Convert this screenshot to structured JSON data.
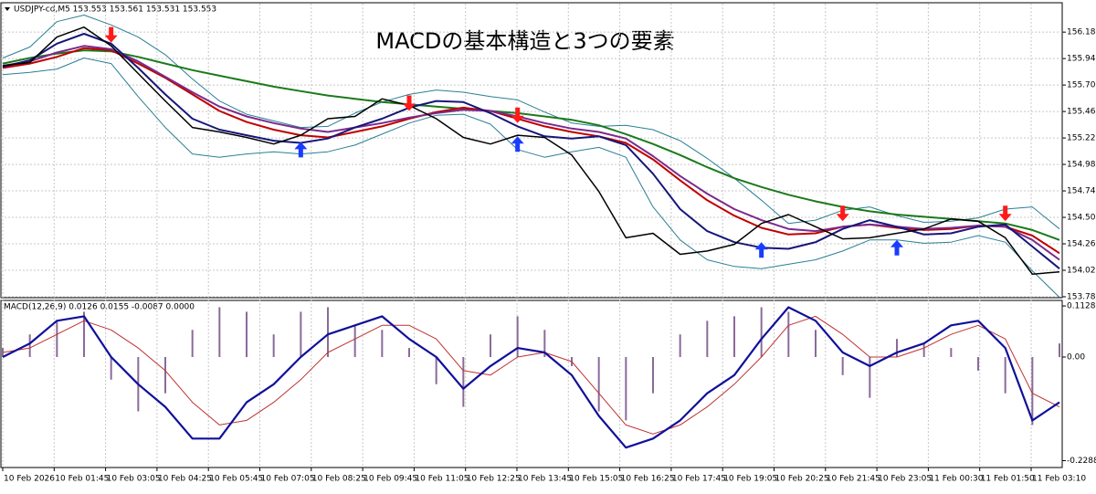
{
  "chart_data": [
    {
      "type": "line",
      "label": "USDJPY-cd,M5  153.553 153.561 153.531 153.553",
      "title": "MACDの基本構造と3つの要素",
      "ylim": [
        153.76,
        156.41
      ],
      "yticks": [
        156.185,
        155.945,
        155.705,
        155.465,
        155.225,
        154.985,
        154.745,
        154.505,
        154.265,
        154.025,
        153.785
      ],
      "grid": true,
      "series": [
        {
          "type": "line",
          "color": "#2a7f95",
          "width": 1,
          "values": [
            155.95,
            156.05,
            156.28,
            156.34,
            156.25,
            156.14,
            155.98,
            155.76,
            155.56,
            155.44,
            155.38,
            155.32,
            155.33,
            155.45,
            155.55,
            155.62,
            155.66,
            155.64,
            155.6,
            155.57,
            155.46,
            155.36,
            155.33,
            155.34,
            155.3,
            155.2,
            155.04,
            154.86,
            154.66,
            154.45,
            154.48,
            154.57,
            154.6,
            154.52,
            154.46,
            154.47,
            154.5,
            154.58,
            154.6,
            154.4
          ]
        },
        {
          "type": "line",
          "color": "#2a7f95",
          "width": 1,
          "values": [
            155.8,
            155.82,
            155.85,
            155.95,
            155.9,
            155.6,
            155.32,
            155.08,
            155.05,
            155.08,
            155.1,
            155.08,
            155.1,
            155.16,
            155.26,
            155.36,
            155.43,
            155.44,
            155.35,
            155.12,
            155.05,
            155.1,
            155.14,
            155.05,
            154.6,
            154.3,
            154.12,
            154.06,
            154.04,
            154.08,
            154.12,
            154.2,
            154.3,
            154.3,
            154.27,
            154.28,
            154.34,
            154.28,
            154.02,
            153.78
          ]
        },
        {
          "type": "line",
          "color": "#1b7a1b",
          "width": 2,
          "values": [
            155.9,
            155.95,
            155.99,
            156.02,
            156.01,
            155.96,
            155.9,
            155.84,
            155.79,
            155.74,
            155.69,
            155.65,
            155.61,
            155.58,
            155.55,
            155.53,
            155.51,
            155.49,
            155.47,
            155.45,
            155.42,
            155.39,
            155.34,
            155.26,
            155.17,
            155.07,
            154.96,
            154.86,
            154.78,
            154.71,
            154.65,
            154.6,
            154.56,
            154.53,
            154.51,
            154.49,
            154.47,
            154.45,
            154.39,
            154.3
          ]
        },
        {
          "type": "line",
          "color": "#c00000",
          "width": 2,
          "values": [
            155.86,
            155.9,
            155.96,
            156.04,
            156.02,
            155.9,
            155.77,
            155.62,
            155.47,
            155.37,
            155.3,
            155.25,
            155.23,
            155.28,
            155.33,
            155.4,
            155.46,
            155.5,
            155.47,
            155.4,
            155.33,
            155.28,
            155.24,
            155.18,
            155.03,
            154.84,
            154.66,
            154.52,
            154.41,
            154.35,
            154.36,
            154.42,
            154.44,
            154.41,
            154.39,
            154.4,
            154.43,
            154.42,
            154.34,
            154.18
          ]
        },
        {
          "type": "line",
          "color": "#7b2a8c",
          "width": 2,
          "values": [
            155.88,
            155.92,
            156.0,
            156.06,
            156.03,
            155.92,
            155.78,
            155.64,
            155.51,
            155.42,
            155.36,
            155.31,
            155.28,
            155.32,
            155.36,
            155.41,
            155.45,
            155.48,
            155.47,
            155.42,
            155.36,
            155.31,
            155.28,
            155.22,
            155.06,
            154.88,
            154.72,
            154.58,
            154.48,
            154.4,
            154.38,
            154.42,
            154.44,
            154.42,
            154.4,
            154.41,
            154.43,
            154.42,
            154.3,
            154.12
          ]
        },
        {
          "type": "line",
          "color": "#16167a",
          "width": 2,
          "values": [
            155.87,
            155.93,
            156.08,
            156.17,
            156.08,
            155.86,
            155.62,
            155.4,
            155.3,
            155.25,
            155.2,
            155.18,
            155.22,
            155.32,
            155.4,
            155.5,
            155.56,
            155.55,
            155.45,
            155.33,
            155.24,
            155.22,
            155.24,
            155.16,
            154.9,
            154.58,
            154.38,
            154.28,
            154.23,
            154.22,
            154.28,
            154.4,
            154.48,
            154.42,
            154.35,
            154.36,
            154.42,
            154.44,
            154.24,
            154.04
          ]
        },
        {
          "type": "line",
          "color": "#000000",
          "width": 1.5,
          "values": [
            155.88,
            155.91,
            156.14,
            156.23,
            156.06,
            155.81,
            155.56,
            155.32,
            155.28,
            155.23,
            155.17,
            155.25,
            155.4,
            155.42,
            155.58,
            155.52,
            155.4,
            155.23,
            155.17,
            155.25,
            155.23,
            155.07,
            154.74,
            154.32,
            154.36,
            154.17,
            154.2,
            154.26,
            154.45,
            154.53,
            154.42,
            154.31,
            154.32,
            154.36,
            154.4,
            154.49,
            154.47,
            154.32,
            153.99,
            154.01
          ]
        },
        {
          "type": "arrow-down",
          "color": "#ff1a1a",
          "values": [
            null,
            null,
            null,
            null,
            156.09,
            null,
            null,
            null,
            null,
            null,
            null,
            null,
            null,
            null,
            null,
            155.47,
            null,
            null,
            null,
            155.36,
            null,
            null,
            null,
            null,
            null,
            null,
            null,
            null,
            null,
            null,
            null,
            154.47,
            null,
            null,
            null,
            null,
            null,
            154.47,
            null,
            null
          ]
        },
        {
          "type": "arrow-up",
          "color": "#1a3cff",
          "values": [
            null,
            null,
            null,
            null,
            null,
            null,
            null,
            null,
            null,
            null,
            null,
            155.19,
            null,
            null,
            null,
            null,
            null,
            null,
            null,
            155.24,
            null,
            null,
            null,
            null,
            null,
            null,
            null,
            null,
            154.28,
            null,
            null,
            null,
            null,
            154.3,
            null,
            null,
            null,
            null,
            null,
            null
          ]
        }
      ]
    },
    {
      "type": "line",
      "label": "MACD(12,26,9) 0.0126 0.0155 -0.0087 0.0000",
      "ylim": [
        -0.244,
        0.119
      ],
      "yticks": [
        0.1128,
        {
          "value": 0,
          "label": "0.00"
        },
        -0.2288
      ],
      "grid": false,
      "time_labels": [
        "10 Feb 2026",
        "10 Feb 01:45",
        "10 Feb 03:05",
        "10 Feb 04:25",
        "10 Feb 05:45",
        "10 Feb 07:05",
        "10 Feb 08:25",
        "10 Feb 09:45",
        "10 Feb 11:05",
        "10 Feb 12:25",
        "10 Feb 13:45",
        "10 Feb 15:05",
        "10 Feb 16:25",
        "10 Feb 17:45",
        "10 Feb 19:05",
        "10 Feb 20:25",
        "10 Feb 21:45",
        "10 Feb 23:05",
        "11 Feb 00:30",
        "11 Feb 01:50",
        "11 Feb 03:10"
      ],
      "series": [
        {
          "type": "bar",
          "color": "#8a6a9a",
          "values": [
            0.02,
            0.05,
            0.08,
            0.1,
            -0.05,
            -0.12,
            -0.08,
            0.06,
            0.11,
            0.1,
            0.05,
            0.1,
            0.11,
            0.07,
            0.06,
            0.02,
            -0.06,
            -0.11,
            0.05,
            0.09,
            0.06,
            -0.02,
            -0.12,
            -0.14,
            -0.08,
            0.05,
            0.08,
            0.09,
            0.11,
            0.1,
            0.06,
            -0.04,
            -0.09,
            0.04,
            0.03,
            0.02,
            -0.03,
            -0.08,
            -0.15,
            0.03
          ]
        },
        {
          "type": "line",
          "color": "#c03030",
          "width": 1,
          "values": [
            0.01,
            0.02,
            0.05,
            0.08,
            0.06,
            0.02,
            -0.03,
            -0.1,
            -0.15,
            -0.14,
            -0.1,
            -0.05,
            0.01,
            0.04,
            0.07,
            0.07,
            0.04,
            -0.03,
            -0.04,
            0.0,
            0.01,
            -0.01,
            -0.08,
            -0.15,
            -0.17,
            -0.15,
            -0.11,
            -0.06,
            0.0,
            0.07,
            0.09,
            0.05,
            0.0,
            0.0,
            0.02,
            0.05,
            0.07,
            0.04,
            -0.08,
            -0.11
          ]
        },
        {
          "type": "line",
          "color": "#10109a",
          "width": 2.2,
          "values": [
            0.0,
            0.03,
            0.08,
            0.09,
            0.0,
            -0.06,
            -0.11,
            -0.18,
            -0.18,
            -0.1,
            -0.06,
            0.0,
            0.05,
            0.07,
            0.09,
            0.04,
            0.0,
            -0.07,
            -0.02,
            0.02,
            0.01,
            -0.04,
            -0.13,
            -0.2,
            -0.18,
            -0.14,
            -0.08,
            -0.04,
            0.04,
            0.11,
            0.08,
            0.01,
            -0.02,
            0.01,
            0.03,
            0.07,
            0.08,
            0.02,
            -0.14,
            -0.1
          ]
        }
      ]
    }
  ]
}
